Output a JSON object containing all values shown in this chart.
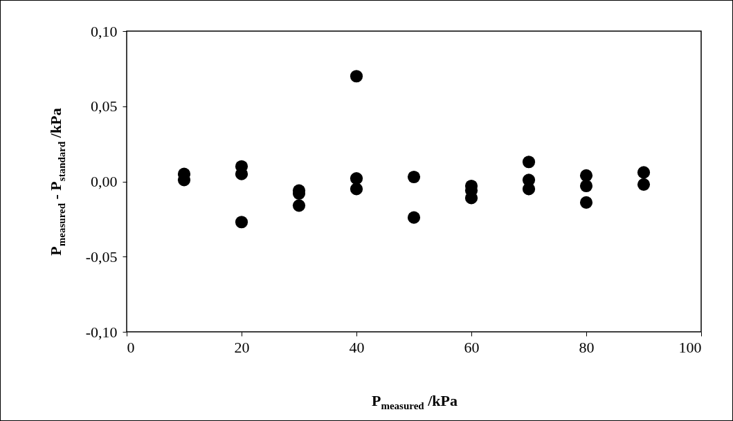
{
  "chart_data": {
    "type": "scatter",
    "xlabel": "P$_{measured}$ /kPa",
    "ylabel": "P$_{measured}$ - P$_{standard}$ /kPa",
    "x": [
      10,
      10,
      20,
      20,
      20,
      30,
      30,
      30,
      40,
      40,
      40,
      50,
      50,
      60,
      60,
      60,
      70,
      70,
      70,
      80,
      80,
      80,
      90,
      90
    ],
    "series": [
      {
        "color": "#000000",
        "values": [
          0.005,
          0.001,
          0.01,
          0.005,
          -0.027,
          -0.006,
          -0.008,
          -0.016,
          0.07,
          0.002,
          -0.005,
          0.003,
          -0.024,
          -0.003,
          -0.006,
          -0.011,
          0.013,
          0.001,
          -0.005,
          0.004,
          -0.003,
          -0.014,
          0.006,
          -0.002
        ]
      }
    ],
    "xlim": [
      0,
      100
    ],
    "xticks": [
      0,
      20,
      40,
      60,
      80,
      100
    ],
    "ylim": [
      -0.1,
      0.1
    ],
    "yticks": [
      {
        "value": -0.1,
        "label": "-0,10"
      },
      {
        "value": -0.05,
        "label": "-0,05"
      },
      {
        "value": 0,
        "label": "0,00"
      },
      {
        "value": 0.05,
        "label": "0,05"
      },
      {
        "value": 0.1,
        "label": "0,10"
      }
    ],
    "marker": "circle",
    "grid": false
  }
}
